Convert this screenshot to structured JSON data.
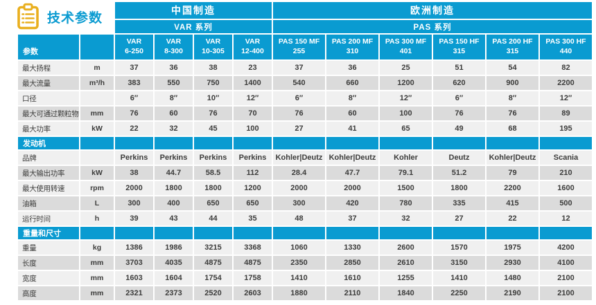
{
  "page": {
    "title": "技术参数"
  },
  "colors": {
    "accent": "#0a9bd1",
    "row_light": "#f0f0f0",
    "row_dark": "#dbdbdb",
    "icon_gold": "#e9af1e",
    "text": "#3c3c3b"
  },
  "table": {
    "param_header": "参数",
    "groups": [
      {
        "label": "中国制造",
        "series_label": "VAR 系列",
        "span": 4
      },
      {
        "label": "欧洲制造",
        "series_label": "PAS 系列",
        "span": 6
      }
    ],
    "models": [
      "VAR\n6-250",
      "VAR\n8-300",
      "VAR\n10-305",
      "VAR\n12-400",
      "PAS 150 MF\n255",
      "PAS 200 MF\n310",
      "PAS 300 MF\n401",
      "PAS 150 HF\n315",
      "PAS 200 HF\n315",
      "PAS 300 HF\n440"
    ],
    "sections": [
      {
        "header": "",
        "rows": [
          {
            "label": "最大扬程",
            "unit": "m",
            "values": [
              "37",
              "36",
              "38",
              "23",
              "37",
              "36",
              "25",
              "51",
              "54",
              "82"
            ]
          },
          {
            "label": "最大流量",
            "unit": "m³/h",
            "values": [
              "383",
              "550",
              "750",
              "1400",
              "540",
              "660",
              "1200",
              "620",
              "900",
              "2200"
            ]
          },
          {
            "label": "口径",
            "unit": "",
            "values": [
              "6″",
              "8″",
              "10″",
              "12″",
              "6″",
              "8″",
              "12″",
              "6″",
              "8″",
              "12″"
            ]
          },
          {
            "label": "最大可通过颗粒物",
            "unit": "mm",
            "values": [
              "76",
              "60",
              "76",
              "70",
              "76",
              "60",
              "100",
              "76",
              "76",
              "89"
            ]
          },
          {
            "label": "最大功率",
            "unit": "kW",
            "values": [
              "22",
              "32",
              "45",
              "100",
              "27",
              "41",
              "65",
              "49",
              "68",
              "195"
            ]
          }
        ]
      },
      {
        "header": "发动机",
        "rows": [
          {
            "label": "品牌",
            "unit": "",
            "values": [
              "Perkins",
              "Perkins",
              "Perkins",
              "Perkins",
              "Kohler|Deutz",
              "Kohler|Deutz",
              "Kohler",
              "Deutz",
              "Kohler|Deutz",
              "Scania"
            ]
          },
          {
            "label": "最大输出功率",
            "unit": "kW",
            "values": [
              "38",
              "44.7",
              "58.5",
              "112",
              "28.4",
              "47.7",
              "79.1",
              "51.2",
              "79",
              "210"
            ]
          },
          {
            "label": "最大使用转速",
            "unit": "rpm",
            "values": [
              "2000",
              "1800",
              "1800",
              "1200",
              "2000",
              "2000",
              "1500",
              "1800",
              "2200",
              "1600"
            ]
          },
          {
            "label": "油箱",
            "unit": "L",
            "values": [
              "300",
              "400",
              "650",
              "650",
              "300",
              "420",
              "780",
              "335",
              "415",
              "500"
            ]
          },
          {
            "label": "运行时间",
            "unit": "h",
            "values": [
              "39",
              "43",
              "44",
              "35",
              "48",
              "37",
              "32",
              "27",
              "22",
              "12"
            ]
          }
        ]
      },
      {
        "header": "重量和尺寸",
        "rows": [
          {
            "label": "重量",
            "unit": "kg",
            "values": [
              "1386",
              "1986",
              "3215",
              "3368",
              "1060",
              "1330",
              "2600",
              "1570",
              "1975",
              "4200"
            ]
          },
          {
            "label": "长度",
            "unit": "mm",
            "values": [
              "3703",
              "4035",
              "4875",
              "4875",
              "2350",
              "2850",
              "2610",
              "3150",
              "2930",
              "4100"
            ]
          },
          {
            "label": "宽度",
            "unit": "mm",
            "values": [
              "1603",
              "1604",
              "1754",
              "1758",
              "1410",
              "1610",
              "1255",
              "1410",
              "1480",
              "2100"
            ]
          },
          {
            "label": "高度",
            "unit": "mm",
            "values": [
              "2321",
              "2373",
              "2520",
              "2603",
              "1880",
              "2110",
              "1840",
              "2250",
              "2190",
              "2100"
            ]
          }
        ]
      }
    ]
  }
}
